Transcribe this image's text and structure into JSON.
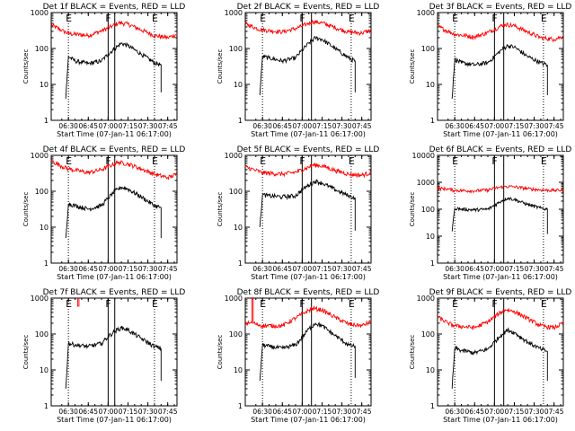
{
  "page": {
    "background": "#ffffff",
    "axis_color": "#000000",
    "colors": {
      "events": "#000000",
      "lld": "#ff0000"
    }
  },
  "chart_data": [
    {
      "type": "line",
      "title": "Det 1f BLACK = Events, RED = LLD",
      "xlabel": "Start Time (07-Jan-11 06:17:00)",
      "ylabel": "Counts/sec",
      "yscale": "log",
      "ylim": [
        1,
        1000
      ],
      "xlim_minutes": [
        0,
        95
      ],
      "x_tick_labels": [
        "06:30",
        "06:45",
        "07:00",
        "07:15",
        "07:30",
        "07:45"
      ],
      "y_tick_labels": [
        "1",
        "10",
        "100",
        "1000"
      ],
      "markers": [
        {
          "label": "E",
          "time": "06:30",
          "style": "dotted"
        },
        {
          "label": "F",
          "time": "07:00",
          "style": "solid"
        },
        {
          "label": "",
          "time": "07:05",
          "style": "solid"
        },
        {
          "label": "E",
          "time": "07:35",
          "style": "dotted"
        }
      ],
      "series": [
        {
          "name": "LLD",
          "x": [
            "06:17",
            "06:25",
            "06:30",
            "06:45",
            "06:55",
            "07:03",
            "07:08",
            "07:15",
            "07:25",
            "07:35",
            "07:45",
            "07:52"
          ],
          "values": [
            450,
            320,
            260,
            230,
            310,
            420,
            520,
            480,
            330,
            230,
            200,
            250
          ]
        },
        {
          "name": "Events",
          "x": [
            "06:28",
            "06:30",
            "06:35",
            "06:45",
            "06:55",
            "07:00",
            "07:05",
            "07:10",
            "07:15",
            "07:25",
            "07:35",
            "07:40",
            "07:40"
          ],
          "values": [
            4,
            60,
            45,
            38,
            45,
            70,
            100,
            140,
            120,
            70,
            40,
            35,
            6
          ]
        }
      ]
    },
    {
      "type": "line",
      "title": "Det 2f BLACK = Events, RED = LLD",
      "xlabel": "Start Time (07-Jan-11 06:17:00)",
      "ylabel": "Counts/sec",
      "yscale": "log",
      "ylim": [
        1,
        1000
      ],
      "xlim_minutes": [
        0,
        95
      ],
      "x_tick_labels": [
        "06:30",
        "06:45",
        "07:00",
        "07:15",
        "07:30",
        "07:45"
      ],
      "y_tick_labels": [
        "1",
        "10",
        "100",
        "1000"
      ],
      "markers": [
        {
          "label": "E",
          "time": "06:30",
          "style": "dotted"
        },
        {
          "label": "F",
          "time": "07:00",
          "style": "solid"
        },
        {
          "label": "",
          "time": "07:07",
          "style": "solid"
        },
        {
          "label": "E",
          "time": "07:37",
          "style": "dotted"
        }
      ],
      "series": [
        {
          "name": "LLD",
          "x": [
            "06:17",
            "06:25",
            "06:30",
            "06:45",
            "06:55",
            "07:03",
            "07:08",
            "07:15",
            "07:25",
            "07:35",
            "07:45",
            "07:52"
          ],
          "values": [
            500,
            370,
            330,
            290,
            360,
            470,
            560,
            520,
            380,
            290,
            270,
            320
          ]
        },
        {
          "name": "Events",
          "x": [
            "06:28",
            "06:30",
            "06:35",
            "06:45",
            "06:55",
            "07:00",
            "07:05",
            "07:10",
            "07:15",
            "07:25",
            "07:35",
            "07:40",
            "07:40"
          ],
          "values": [
            5,
            60,
            55,
            45,
            55,
            90,
            140,
            200,
            180,
            100,
            55,
            45,
            6
          ]
        }
      ]
    },
    {
      "type": "line",
      "title": "Det 3f BLACK = Events, RED = LLD",
      "xlabel": "Start Time (07-Jan-11 06:17:00)",
      "ylabel": "Counts/sec",
      "yscale": "log",
      "ylim": [
        1,
        1000
      ],
      "xlim_minutes": [
        0,
        95
      ],
      "x_tick_labels": [
        "06:30",
        "06:45",
        "07:00",
        "07:15",
        "07:30",
        "07:45"
      ],
      "y_tick_labels": [
        "1",
        "10",
        "100",
        "1000"
      ],
      "markers": [
        {
          "label": "E",
          "time": "06:30",
          "style": "dotted"
        },
        {
          "label": "F",
          "time": "07:00",
          "style": "solid"
        },
        {
          "label": "",
          "time": "07:07",
          "style": "solid"
        },
        {
          "label": "E",
          "time": "07:37",
          "style": "dotted"
        }
      ],
      "series": [
        {
          "name": "LLD",
          "x": [
            "06:17",
            "06:25",
            "06:30",
            "06:45",
            "06:55",
            "07:03",
            "07:08",
            "07:15",
            "07:25",
            "07:35",
            "07:45",
            "07:52"
          ],
          "values": [
            420,
            300,
            250,
            210,
            280,
            390,
            470,
            430,
            290,
            200,
            180,
            220
          ]
        },
        {
          "name": "Events",
          "x": [
            "06:28",
            "06:30",
            "06:35",
            "06:45",
            "06:55",
            "07:00",
            "07:05",
            "07:10",
            "07:15",
            "07:25",
            "07:35",
            "07:40",
            "07:40"
          ],
          "values": [
            4,
            50,
            40,
            35,
            40,
            60,
            90,
            120,
            110,
            60,
            40,
            35,
            5
          ]
        }
      ]
    },
    {
      "type": "line",
      "title": "Det 4f BLACK = Events, RED = LLD",
      "xlabel": "Start Time (07-Jan-11 06:17:00)",
      "ylabel": "Counts/sec",
      "yscale": "log",
      "ylim": [
        1,
        1000
      ],
      "xlim_minutes": [
        0,
        95
      ],
      "x_tick_labels": [
        "06:30",
        "06:45",
        "07:00",
        "07:15",
        "07:30",
        "07:45"
      ],
      "y_tick_labels": [
        "1",
        "10",
        "100",
        "1000"
      ],
      "markers": [
        {
          "label": "E",
          "time": "06:30",
          "style": "dotted"
        },
        {
          "label": "F",
          "time": "07:00",
          "style": "solid"
        },
        {
          "label": "",
          "time": "07:05",
          "style": "solid"
        },
        {
          "label": "E",
          "time": "07:35",
          "style": "dotted"
        }
      ],
      "series": [
        {
          "name": "LLD",
          "x": [
            "06:17",
            "06:25",
            "06:30",
            "06:45",
            "06:55",
            "07:03",
            "07:08",
            "07:15",
            "07:25",
            "07:35",
            "07:45",
            "07:52"
          ],
          "values": [
            700,
            500,
            420,
            330,
            400,
            550,
            640,
            580,
            420,
            300,
            240,
            300
          ]
        },
        {
          "name": "Events",
          "x": [
            "06:28",
            "06:30",
            "06:35",
            "06:45",
            "06:55",
            "07:00",
            "07:05",
            "07:10",
            "07:15",
            "07:25",
            "07:35",
            "07:40",
            "07:40"
          ],
          "values": [
            5,
            45,
            40,
            32,
            40,
            65,
            100,
            130,
            115,
            70,
            40,
            35,
            5
          ]
        }
      ]
    },
    {
      "type": "line",
      "title": "Det 5f BLACK = Events, RED = LLD",
      "xlabel": "Start Time (07-Jan-11 06:17:00)",
      "ylabel": "Counts/sec",
      "yscale": "log",
      "ylim": [
        1,
        1000
      ],
      "xlim_minutes": [
        0,
        95
      ],
      "x_tick_labels": [
        "06:30",
        "06:45",
        "07:00",
        "07:15",
        "07:30",
        "07:45"
      ],
      "y_tick_labels": [
        "1",
        "10",
        "100",
        "1000"
      ],
      "markers": [
        {
          "label": "E",
          "time": "06:30",
          "style": "dotted"
        },
        {
          "label": "F",
          "time": "07:00",
          "style": "solid"
        },
        {
          "label": "",
          "time": "07:07",
          "style": "solid"
        },
        {
          "label": "E",
          "time": "07:37",
          "style": "dotted"
        }
      ],
      "series": [
        {
          "name": "LLD",
          "x": [
            "06:17",
            "06:25",
            "06:30",
            "06:45",
            "06:55",
            "07:03",
            "07:08",
            "07:15",
            "07:25",
            "07:35",
            "07:45",
            "07:52"
          ],
          "values": [
            480,
            380,
            330,
            300,
            340,
            440,
            540,
            510,
            380,
            300,
            280,
            330
          ]
        },
        {
          "name": "Events",
          "x": [
            "06:28",
            "06:30",
            "06:35",
            "06:45",
            "06:55",
            "07:00",
            "07:05",
            "07:10",
            "07:15",
            "07:25",
            "07:35",
            "07:40",
            "07:40"
          ],
          "values": [
            10,
            80,
            75,
            70,
            75,
            110,
            150,
            190,
            170,
            110,
            75,
            65,
            8
          ]
        }
      ]
    },
    {
      "type": "line",
      "title": "Det 6f BLACK = Events, RED = LLD",
      "xlabel": "Start Time (07-Jan-11 06:17:00)",
      "ylabel": "Counts/sec",
      "yscale": "log",
      "ylim": [
        1,
        10000
      ],
      "xlim_minutes": [
        0,
        95
      ],
      "x_tick_labels": [
        "06:30",
        "06:45",
        "07:00",
        "07:15",
        "07:30",
        "07:45"
      ],
      "y_tick_labels": [
        "1",
        "10",
        "100",
        "1000",
        "10000"
      ],
      "markers": [
        {
          "label": "E",
          "time": "06:30",
          "style": "dotted"
        },
        {
          "label": "F",
          "time": "07:00",
          "style": "solid"
        },
        {
          "label": "",
          "time": "07:07",
          "style": "solid"
        },
        {
          "label": "E",
          "time": "07:37",
          "style": "dotted"
        }
      ],
      "series": [
        {
          "name": "LLD",
          "x": [
            "06:17",
            "06:25",
            "06:30",
            "06:45",
            "06:55",
            "07:03",
            "07:08",
            "07:15",
            "07:25",
            "07:35",
            "07:45",
            "07:52"
          ],
          "values": [
            600,
            560,
            500,
            480,
            520,
            640,
            700,
            680,
            580,
            520,
            500,
            520
          ]
        },
        {
          "name": "Events",
          "x": [
            "06:28",
            "06:30",
            "06:35",
            "06:45",
            "06:55",
            "07:00",
            "07:05",
            "07:10",
            "07:15",
            "07:25",
            "07:35",
            "07:40",
            "07:40"
          ],
          "values": [
            15,
            110,
            100,
            95,
            100,
            140,
            200,
            260,
            230,
            150,
            110,
            100,
            12
          ]
        }
      ]
    },
    {
      "type": "line",
      "title": "Det 7f BLACK = Events, RED = LLD",
      "xlabel": "Start Time (07-Jan-11 06:17:00)",
      "ylabel": "Counts/sec",
      "yscale": "log",
      "ylim": [
        1,
        1000
      ],
      "xlim_minutes": [
        0,
        95
      ],
      "x_tick_labels": [
        "06:30",
        "06:45",
        "07:00",
        "07:15",
        "07:30",
        "07:45"
      ],
      "y_tick_labels": [
        "1",
        "10",
        "100",
        "1000"
      ],
      "markers": [
        {
          "label": "E",
          "time": "06:30",
          "style": "dotted"
        },
        {
          "label": "F",
          "time": "07:00",
          "style": "solid"
        },
        {
          "label": "",
          "time": "07:05",
          "style": "solid"
        },
        {
          "label": "E",
          "time": "07:35",
          "style": "dotted"
        }
      ],
      "series": [
        {
          "name": "LLD",
          "x": [
            "06:37",
            "06:37",
            "06:38",
            "06:38"
          ],
          "values": [
            1000,
            600,
            600,
            1000
          ]
        },
        {
          "name": "Events",
          "x": [
            "06:28",
            "06:30",
            "06:35",
            "06:45",
            "06:55",
            "07:00",
            "07:05",
            "07:10",
            "07:15",
            "07:25",
            "07:35",
            "07:40",
            "07:40"
          ],
          "values": [
            3,
            55,
            50,
            45,
            55,
            85,
            120,
            150,
            130,
            75,
            45,
            40,
            5
          ]
        }
      ]
    },
    {
      "type": "line",
      "title": "Det 8f BLACK = Events, RED = LLD",
      "xlabel": "Start Time (07-Jan-11 06:17:00)",
      "ylabel": "Counts/sec",
      "yscale": "log",
      "ylim": [
        1,
        1000
      ],
      "xlim_minutes": [
        0,
        95
      ],
      "x_tick_labels": [
        "06:30",
        "06:45",
        "07:00",
        "07:15",
        "07:30",
        "07:45"
      ],
      "y_tick_labels": [
        "1",
        "10",
        "100",
        "1000"
      ],
      "markers": [
        {
          "label": "E",
          "time": "06:30",
          "style": "dotted"
        },
        {
          "label": "F",
          "time": "07:00",
          "style": "solid"
        },
        {
          "label": "",
          "time": "07:07",
          "style": "solid"
        },
        {
          "label": "E",
          "time": "07:37",
          "style": "dotted"
        }
      ],
      "series": [
        {
          "name": "LLD",
          "x": [
            "06:17",
            "06:22",
            "06:22",
            "06:23",
            "06:23",
            "06:25",
            "06:30",
            "06:45",
            "06:55",
            "07:03",
            "07:08",
            "07:15",
            "07:25",
            "07:35",
            "07:45",
            "07:52"
          ],
          "values": [
            200,
            200,
            1000,
            1000,
            200,
            190,
            170,
            170,
            280,
            420,
            520,
            470,
            290,
            190,
            170,
            220
          ]
        },
        {
          "name": "Events",
          "x": [
            "06:28",
            "06:30",
            "06:35",
            "06:45",
            "06:55",
            "07:00",
            "07:05",
            "07:10",
            "07:15",
            "07:25",
            "07:35",
            "07:40",
            "07:40"
          ],
          "values": [
            5,
            50,
            45,
            40,
            50,
            80,
            140,
            200,
            170,
            90,
            50,
            45,
            6
          ]
        }
      ]
    },
    {
      "type": "line",
      "title": "Det 9f BLACK = Events, RED = LLD",
      "xlabel": "Start Time (07-Jan-11 06:17:00)",
      "ylabel": "Counts/sec",
      "yscale": "log",
      "ylim": [
        1,
        1000
      ],
      "xlim_minutes": [
        0,
        95
      ],
      "x_tick_labels": [
        "06:30",
        "06:45",
        "07:00",
        "07:15",
        "07:30",
        "07:45"
      ],
      "y_tick_labels": [
        "1",
        "10",
        "100",
        "1000"
      ],
      "markers": [
        {
          "label": "E",
          "time": "06:30",
          "style": "dotted"
        },
        {
          "label": "F",
          "time": "07:00",
          "style": "solid"
        },
        {
          "label": "",
          "time": "07:07",
          "style": "solid"
        },
        {
          "label": "E",
          "time": "07:37",
          "style": "dotted"
        }
      ],
      "series": [
        {
          "name": "LLD",
          "x": [
            "06:17",
            "06:25",
            "06:30",
            "06:45",
            "06:55",
            "07:03",
            "07:08",
            "07:15",
            "07:25",
            "07:35",
            "07:45",
            "07:52"
          ],
          "values": [
            300,
            200,
            170,
            150,
            220,
            360,
            480,
            430,
            270,
            170,
            150,
            200
          ]
        },
        {
          "name": "Events",
          "x": [
            "06:28",
            "06:30",
            "06:35",
            "06:45",
            "06:55",
            "07:00",
            "07:05",
            "07:10",
            "07:15",
            "07:25",
            "07:35",
            "07:40",
            "07:40"
          ],
          "values": [
            3,
            40,
            35,
            30,
            38,
            60,
            95,
            130,
            110,
            60,
            38,
            33,
            5
          ]
        }
      ]
    }
  ]
}
